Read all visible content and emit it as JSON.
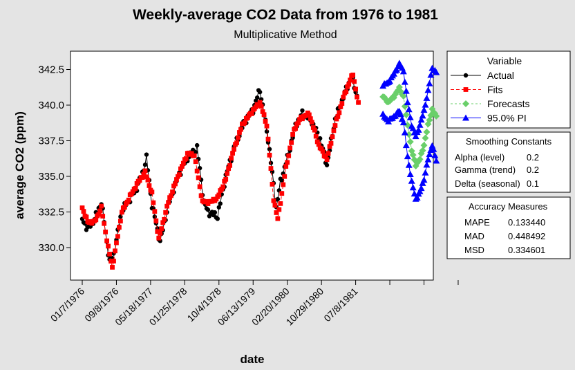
{
  "chart_data": {
    "type": "line",
    "title": "Weekly-average CO2 Data from 1976 to 1981",
    "subtitle": "Multiplicative Method",
    "xlabel": "date",
    "ylabel": "average CO2 (ppm)",
    "ylim": [
      328.0,
      343.4
    ],
    "y_ticks": [
      "330.0",
      "332.5",
      "335.0",
      "337.5",
      "340.0",
      "342.5"
    ],
    "x_ticks": [
      "01/7/1976",
      "09/8/1976",
      "05/18/1977",
      "01/25/1978",
      "10/4/1978",
      "06/13/1979",
      "02/20/1980",
      "10/29/1980",
      "07/8/1981",
      "",
      "",
      ""
    ],
    "n_points": 260,
    "actual_end_index": 203,
    "tick_index_step": 25,
    "grid": false,
    "legend_position": "right",
    "series": [
      {
        "name": "Actual",
        "color": "#000000",
        "marker": "circle",
        "index_range": [
          1,
          203
        ],
        "keyframes": [
          [
            1,
            332.0
          ],
          [
            5,
            331.3
          ],
          [
            10,
            332.0
          ],
          [
            15,
            333.2
          ],
          [
            21,
            329.0
          ],
          [
            24,
            329.5
          ],
          [
            30,
            332.6
          ],
          [
            35,
            333.3
          ],
          [
            40,
            334.0
          ],
          [
            45,
            335.2
          ],
          [
            48,
            336.3
          ],
          [
            52,
            333.0
          ],
          [
            58,
            330.4
          ],
          [
            64,
            333.0
          ],
          [
            72,
            335.2
          ],
          [
            78,
            336.3
          ],
          [
            85,
            337.0
          ],
          [
            90,
            333.2
          ],
          [
            93,
            332.5
          ],
          [
            100,
            332.2
          ],
          [
            106,
            335.0
          ],
          [
            112,
            337.0
          ],
          [
            119,
            338.7
          ],
          [
            126,
            339.7
          ],
          [
            131,
            341.1
          ],
          [
            137,
            337.6
          ],
          [
            143,
            332.8
          ],
          [
            146,
            334.6
          ],
          [
            152,
            336.6
          ],
          [
            157,
            338.6
          ],
          [
            162,
            339.4
          ],
          [
            168,
            339.0
          ],
          [
            175,
            337.6
          ],
          [
            180,
            335.8
          ],
          [
            186,
            339.0
          ],
          [
            194,
            341.1
          ],
          [
            198,
            342.0
          ],
          [
            203,
            340.3
          ]
        ]
      },
      {
        "name": "Fits",
        "color": "#ff0000",
        "marker": "square",
        "index_range": [
          1,
          203
        ],
        "keyframes": [
          [
            1,
            332.8
          ],
          [
            5,
            331.8
          ],
          [
            10,
            331.8
          ],
          [
            15,
            332.8
          ],
          [
            20,
            330.0
          ],
          [
            23,
            328.6
          ],
          [
            30,
            332.5
          ],
          [
            36,
            333.6
          ],
          [
            42,
            334.6
          ],
          [
            47,
            335.3
          ],
          [
            52,
            333.8
          ],
          [
            57,
            330.6
          ],
          [
            64,
            333.2
          ],
          [
            71,
            335.0
          ],
          [
            78,
            336.6
          ],
          [
            83,
            336.5
          ],
          [
            89,
            333.2
          ],
          [
            95,
            333.2
          ],
          [
            100,
            333.5
          ],
          [
            106,
            334.8
          ],
          [
            111,
            336.6
          ],
          [
            118,
            338.6
          ],
          [
            124,
            339.4
          ],
          [
            131,
            340.2
          ],
          [
            136,
            338.6
          ],
          [
            141,
            333.4
          ],
          [
            144,
            332.0
          ],
          [
            150,
            335.6
          ],
          [
            156,
            338.3
          ],
          [
            161,
            339.1
          ],
          [
            167,
            339.4
          ],
          [
            174,
            337.2
          ],
          [
            180,
            336.2
          ],
          [
            186,
            338.6
          ],
          [
            193,
            340.8
          ],
          [
            199,
            342.2
          ],
          [
            205,
            339.0
          ],
          [
            208,
            337.2
          ],
          [
            211,
            337.6
          ],
          [
            214,
            338.5
          ],
          [
            217,
            339.6
          ],
          [
            220,
            341.3
          ],
          [
            223,
            341.2
          ]
        ]
      },
      {
        "name": "Forecasts",
        "color": "#6acf6a",
        "marker": "diamond",
        "index_range": [
          221,
          260
        ],
        "keyframes": [
          [
            221,
            340.6
          ],
          [
            225,
            340.2
          ],
          [
            229,
            340.6
          ],
          [
            233,
            341.2
          ],
          [
            236,
            340.6
          ],
          [
            239,
            338.6
          ],
          [
            242,
            336.8
          ],
          [
            245,
            335.8
          ],
          [
            248,
            336.2
          ],
          [
            251,
            337.2
          ],
          [
            254,
            338.6
          ],
          [
            257,
            339.7
          ],
          [
            260,
            339.2
          ]
        ]
      },
      {
        "name": "95.0% PI",
        "color": "#0000ff",
        "marker": "triangle",
        "index_range": [
          221,
          260
        ],
        "upper_keyframes": [
          [
            221,
            341.4
          ],
          [
            225,
            341.6
          ],
          [
            229,
            342.2
          ],
          [
            233,
            342.9
          ],
          [
            236,
            342.4
          ],
          [
            239,
            340.2
          ],
          [
            242,
            338.6
          ],
          [
            245,
            337.8
          ],
          [
            248,
            338.6
          ],
          [
            251,
            339.6
          ],
          [
            254,
            341.0
          ],
          [
            257,
            342.6
          ],
          [
            260,
            342.3
          ]
        ],
        "lower_keyframes": [
          [
            221,
            339.3
          ],
          [
            225,
            338.9
          ],
          [
            229,
            339.2
          ],
          [
            233,
            339.6
          ],
          [
            236,
            338.8
          ],
          [
            239,
            336.4
          ],
          [
            242,
            334.6
          ],
          [
            245,
            333.4
          ],
          [
            248,
            333.9
          ],
          [
            251,
            334.8
          ],
          [
            254,
            336.2
          ],
          [
            257,
            337.2
          ],
          [
            260,
            336.1
          ]
        ]
      }
    ]
  },
  "legend": {
    "title": "Variable",
    "items": [
      "Actual",
      "Fits",
      "Forecasts",
      "95.0% PI"
    ]
  },
  "smoothing": {
    "title": "Smoothing Constants",
    "rows": [
      {
        "label": "Alpha (level)",
        "value": "0.2"
      },
      {
        "label": "Gamma (trend)",
        "value": "0.2"
      },
      {
        "label": "Delta (seasonal)",
        "value": "0.1"
      }
    ]
  },
  "accuracy": {
    "title": "Accuracy Measures",
    "rows": [
      {
        "label": "MAPE",
        "value": "0.133440"
      },
      {
        "label": "MAD",
        "value": "0.448492"
      },
      {
        "label": "MSD",
        "value": "0.334601"
      }
    ]
  }
}
